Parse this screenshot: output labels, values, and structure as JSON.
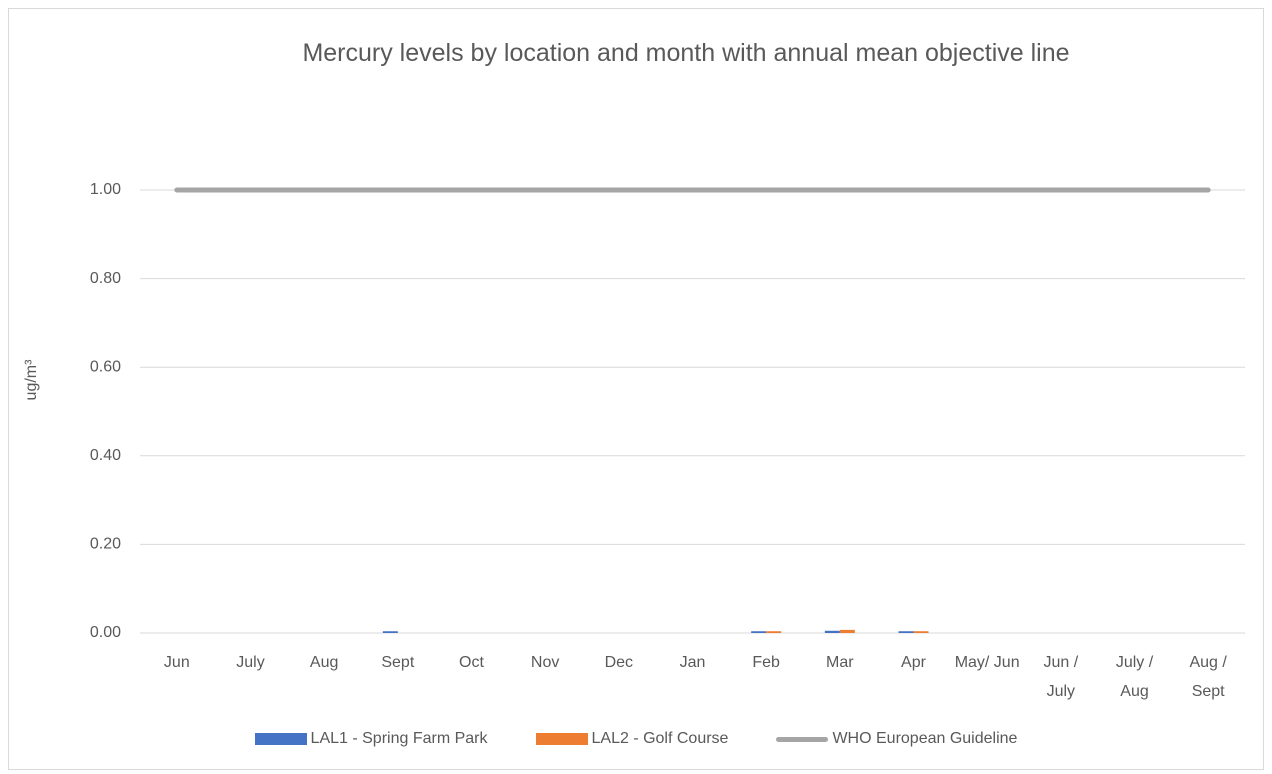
{
  "chart_data": {
    "type": "bar",
    "title": "Mercury levels by location and month with annual mean objective line",
    "y_label": "ug/m³",
    "categories": [
      "Jun",
      "July",
      "Aug",
      "Sept",
      "Oct",
      "Nov",
      "Dec",
      "Jan",
      "Feb",
      "Mar",
      "Apr",
      "May/ Jun",
      "Jun / July",
      "July / Aug",
      "Aug / Sept"
    ],
    "series": [
      {
        "name": "LAL1 - Spring Farm Park",
        "color": "#4472c4",
        "type": "bar",
        "values": [
          null,
          null,
          null,
          0.004,
          null,
          null,
          null,
          null,
          0.004,
          0.005,
          0.004,
          null,
          null,
          null,
          null
        ]
      },
      {
        "name": "LAL2 - Golf Course",
        "color": "#ed7d31",
        "type": "bar",
        "values": [
          null,
          null,
          null,
          null,
          null,
          null,
          null,
          null,
          0.004,
          0.007,
          0.004,
          null,
          null,
          null,
          null
        ]
      },
      {
        "name": "WHO European Guideline",
        "color": "#a5a5a5",
        "type": "line",
        "values": [
          1,
          1,
          1,
          1,
          1,
          1,
          1,
          1,
          1,
          1,
          1,
          1,
          1,
          1,
          1
        ]
      }
    ],
    "ylim": [
      0,
      1
    ],
    "yticks": [
      {
        "value": 0,
        "label": "0.00"
      },
      {
        "value": 0.2,
        "label": "0.20"
      },
      {
        "value": 0.4,
        "label": "0.40"
      },
      {
        "value": 0.6,
        "label": "0.60"
      },
      {
        "value": 0.8,
        "label": "0.80"
      },
      {
        "value": 1,
        "label": "1.00"
      }
    ],
    "grid": true,
    "legend": "bottom"
  }
}
